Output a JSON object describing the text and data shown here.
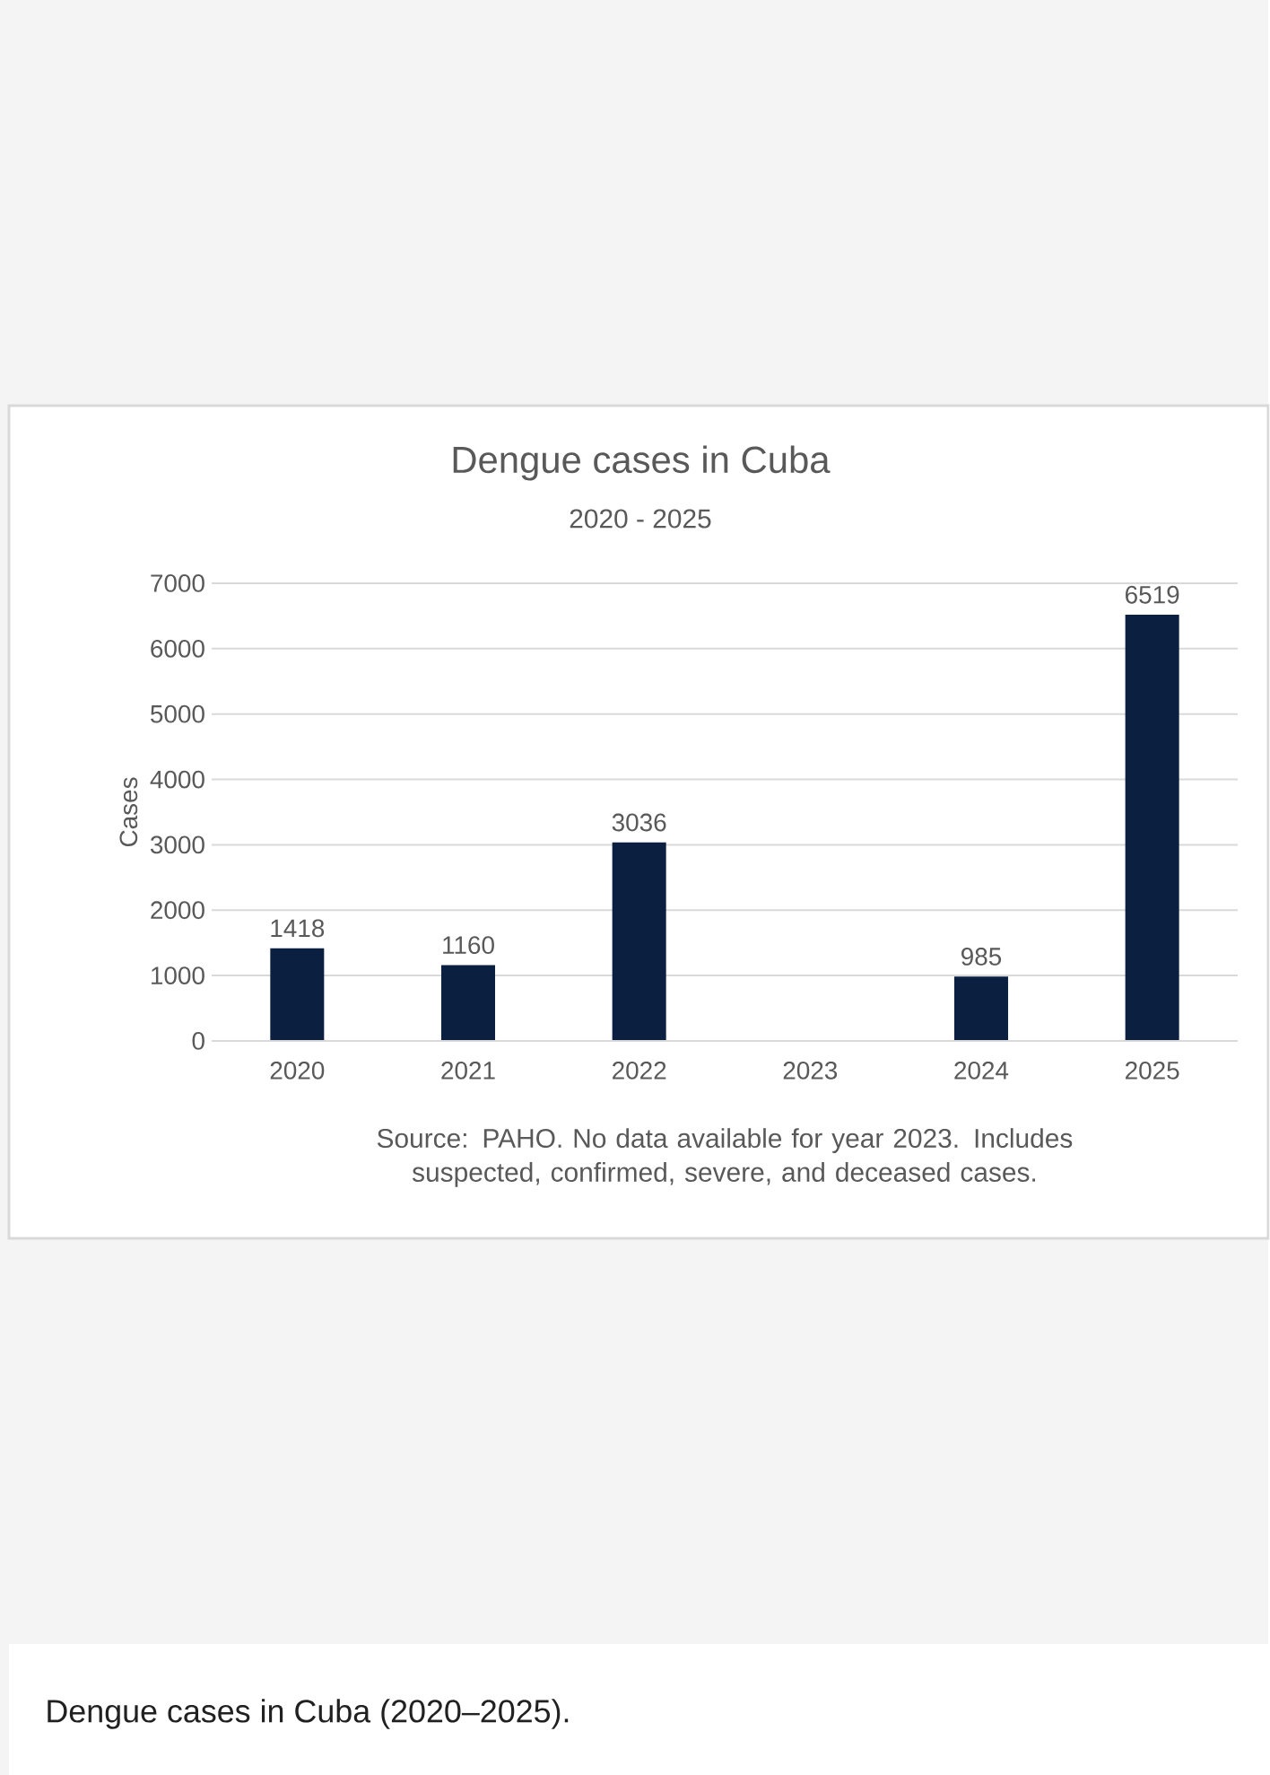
{
  "chart_data": {
    "type": "bar",
    "title": "Dengue cases in Cuba",
    "subtitle": "2020 - 2025",
    "ylabel": "Cases",
    "categories": [
      "2020",
      "2021",
      "2022",
      "2023",
      "2024",
      "2025"
    ],
    "values": [
      1418,
      1160,
      3036,
      null,
      985,
      6519
    ],
    "color": "#0b1f40",
    "ylim": [
      0,
      7000
    ],
    "yticks": [
      0,
      1000,
      2000,
      3000,
      4000,
      5000,
      6000,
      7000
    ],
    "grid": "y",
    "data_labels": true,
    "annotations": [
      "Source: PAHO. No data available for year 2023. Includes suspected, confirmed, severe, and deceased cases.",
      "Dengue cases in Cuba (2020–2025)."
    ]
  }
}
